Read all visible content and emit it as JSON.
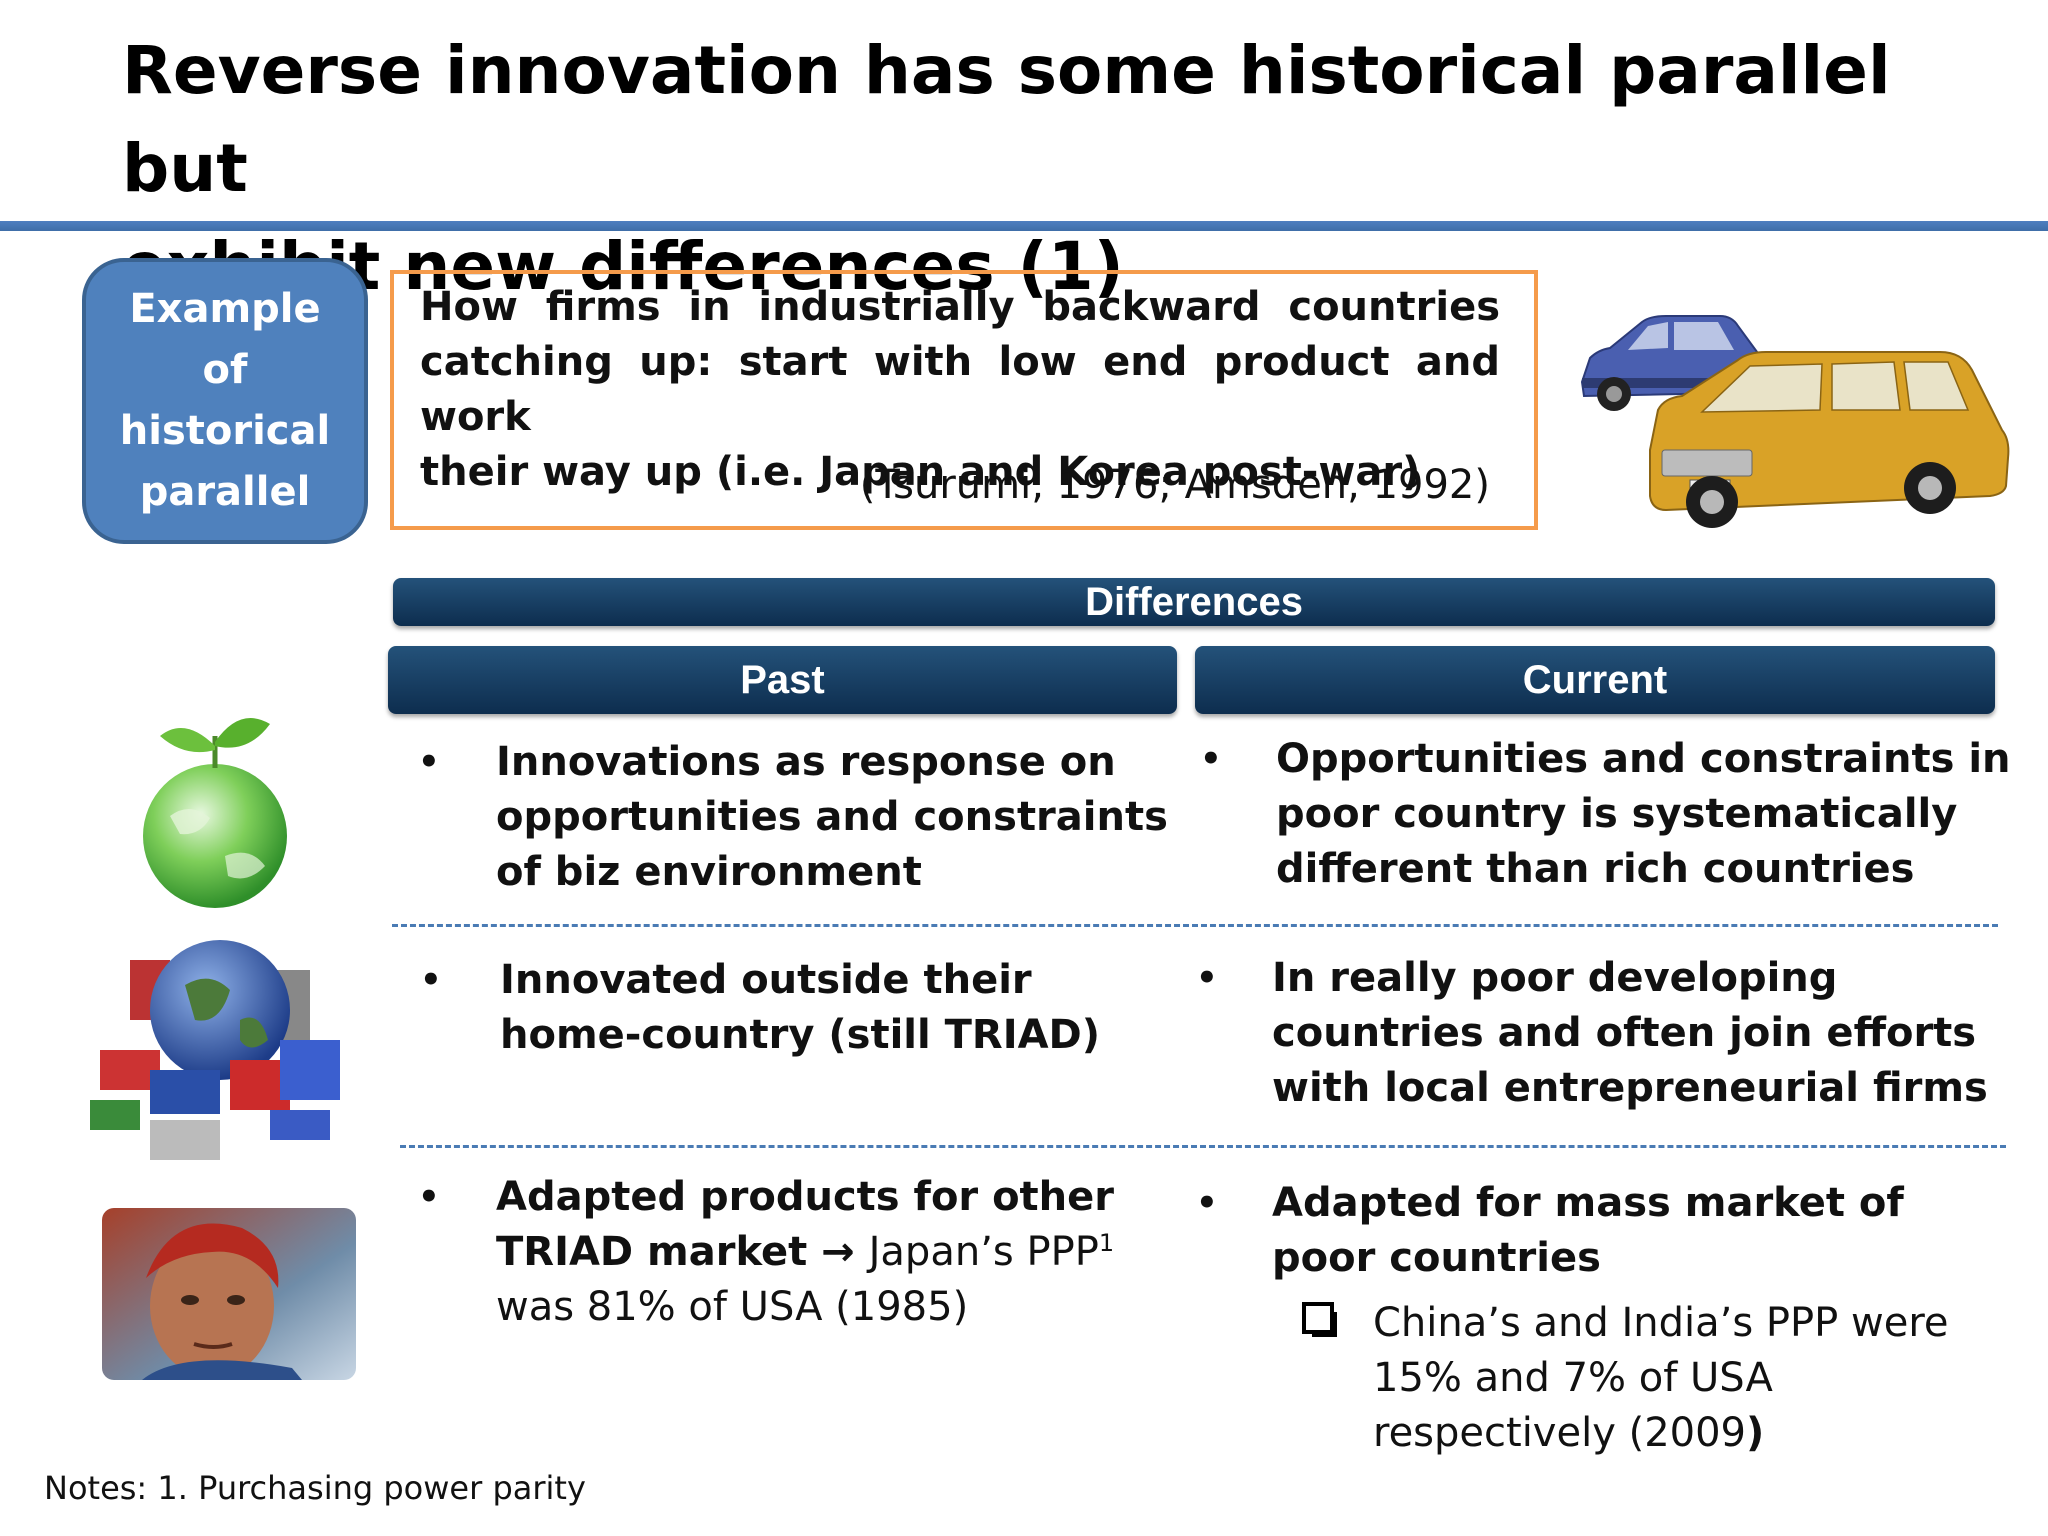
{
  "title": {
    "line1": "Reverse innovation has some historical parallel but",
    "line2": "exhibit new differences (1)"
  },
  "example": {
    "label_lines": [
      "Example",
      "of",
      "historical",
      "parallel"
    ],
    "description_line1": "How firms in industrially backward countries",
    "description_line2": "catching up:  start with low end product and work",
    "description_line3": "their way up (i.e. Japan and Korea post-war)",
    "citation": "(Tsurumi, 1976; Amsden, 1992)"
  },
  "differences": {
    "header": "Differences",
    "past_header": "Past",
    "current_header": "Current",
    "rows": [
      {
        "past": [
          "Innovations as response on",
          "opportunities and constraints",
          "of biz environment"
        ],
        "current": [
          "Opportunities and constraints in",
          "poor country is systematically",
          "different than rich countries"
        ]
      },
      {
        "past": [
          "Innovated outside their",
          "home-country (still TRIAD)"
        ],
        "current": [
          "In  really poor developing",
          "countries and often join efforts",
          "with local entrepreneurial firms"
        ]
      },
      {
        "past_bold_line1": "Adapted products for other",
        "past_bold_line2a": "TRIAD market",
        "past_arrow": "→",
        "past_plain_line2b": "Japan’s PPP",
        "past_sup": "1",
        "past_plain_line3": "was 81% of USA (1985)",
        "current": [
          "Adapted for mass market of",
          "poor countries"
        ],
        "current_sub": [
          "China’s and India’s PPP were",
          "15% and 7% of USA",
          "respectively (2009"
        ],
        "current_sub_close": ")"
      }
    ]
  },
  "bullet": "•",
  "notes": "Notes: 1. Purchasing power parity"
}
